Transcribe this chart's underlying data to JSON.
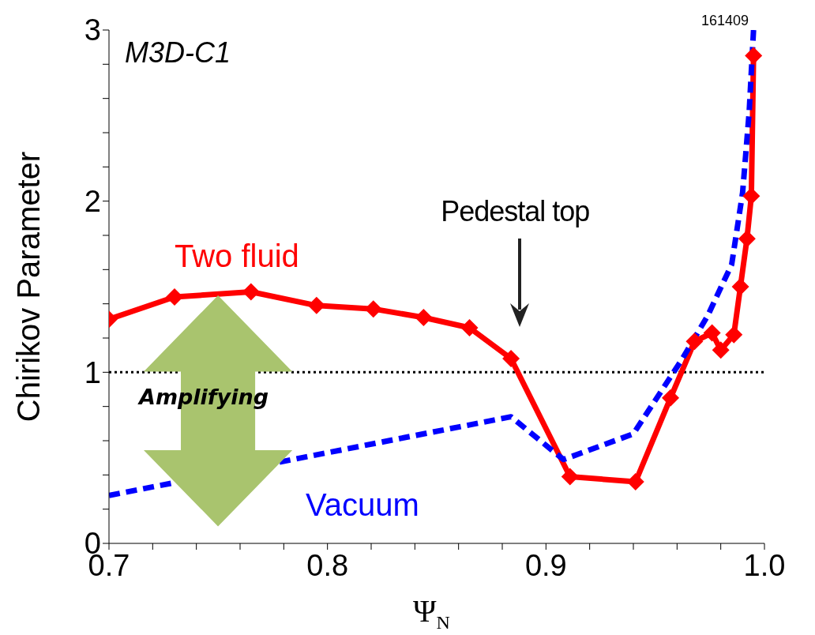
{
  "chart_data": {
    "type": "line",
    "xlabel": "Ψ$_{N}$",
    "ylabel": "Chirikov Parameter",
    "xlim": [
      0.7,
      1.0
    ],
    "ylim": [
      0,
      3
    ],
    "xticks": [
      0.7,
      {
        "value": 0.72,
        "label": null
      },
      {
        "value": 0.74,
        "label": null
      },
      {
        "value": 0.76,
        "label": null
      },
      {
        "value": 0.78,
        "label": null
      },
      0.8,
      {
        "value": 0.82,
        "label": null
      },
      {
        "value": 0.84,
        "label": null
      },
      {
        "value": 0.86,
        "label": null
      },
      {
        "value": 0.88,
        "label": null
      },
      0.9,
      {
        "value": 0.92,
        "label": null
      },
      {
        "value": 0.94,
        "label": null
      },
      {
        "value": 0.96,
        "label": null
      },
      {
        "value": 0.98,
        "label": null
      },
      {
        "value": 1.0,
        "label": "1.0"
      }
    ],
    "yticks": [
      0,
      {
        "value": 0.2,
        "label": null
      },
      {
        "value": 0.4,
        "label": null
      },
      {
        "value": 0.6,
        "label": null
      },
      {
        "value": 0.8,
        "label": null
      },
      1,
      {
        "value": 1.2,
        "label": null
      },
      {
        "value": 1.4,
        "label": null
      },
      {
        "value": 1.6,
        "label": null
      },
      {
        "value": 1.8,
        "label": null
      },
      2,
      {
        "value": 2.2,
        "label": null
      },
      {
        "value": 2.4,
        "label": null
      },
      {
        "value": 2.6,
        "label": null
      },
      {
        "value": 2.8,
        "label": null
      },
      3
    ],
    "grid": false,
    "legend": false,
    "series": [
      {
        "name": "Two fluid",
        "color": "#ff0000",
        "line_style": "solid",
        "marker": "diamond",
        "x": [
          0.7,
          0.73,
          0.765,
          0.795,
          0.821,
          0.844,
          0.865,
          0.884,
          0.911,
          0.941,
          0.957,
          0.968,
          0.976,
          0.98,
          0.986,
          0.989,
          0.992,
          0.994,
          0.995
        ],
        "values": [
          1.31,
          1.44,
          1.47,
          1.39,
          1.37,
          1.32,
          1.26,
          1.08,
          0.39,
          0.36,
          0.85,
          1.18,
          1.23,
          1.13,
          1.22,
          1.5,
          1.78,
          2.03,
          2.85
        ]
      },
      {
        "name": "Vacuum",
        "color": "#0000ff",
        "line_style": "dashed",
        "marker": "none",
        "x": [
          0.7,
          0.884,
          0.908,
          0.94,
          0.962,
          0.974,
          0.985,
          0.99,
          0.993,
          0.995
        ],
        "values": [
          0.28,
          0.74,
          0.49,
          0.64,
          1.07,
          1.33,
          1.63,
          2.05,
          2.52,
          3.0
        ]
      }
    ],
    "ref_lines": [
      {
        "axis": "y",
        "value": 1,
        "color": "#000000",
        "line_style": "dotted"
      }
    ],
    "annotations": [
      "Pedestal top",
      "M3D-C1",
      "161409",
      "Amplifying"
    ]
  }
}
